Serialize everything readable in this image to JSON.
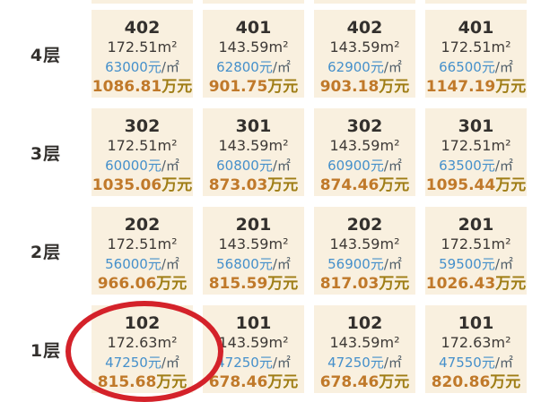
{
  "labels": {
    "per_suffix": "/㎡",
    "total_suffix": "万元"
  },
  "colors": {
    "cell_background": "#f9f0df",
    "text_dark": "#33302d",
    "price_blue": "#4590cb",
    "total_gold": "#c0792a",
    "total_suffix_gold": "#9f7d15",
    "highlight_red": "#d4222a"
  },
  "highlight": {
    "shape": "red-ellipse",
    "floor": "1层",
    "unit": "102"
  },
  "chart_data": {
    "type": "table",
    "row_headers": [
      "4层",
      "3层",
      "2层",
      "1层"
    ],
    "columns_per_row": 4,
    "floors": [
      {
        "label": "4层",
        "units": [
          {
            "no": "402",
            "area": "172.51m²",
            "price": "63000元",
            "total": "1086.81"
          },
          {
            "no": "401",
            "area": "143.59m²",
            "price": "62800元",
            "total": "901.75"
          },
          {
            "no": "402",
            "area": "143.59m²",
            "price": "62900元",
            "total": "903.18"
          },
          {
            "no": "401",
            "area": "172.51m²",
            "price": "66500元",
            "total": "1147.19"
          }
        ]
      },
      {
        "label": "3层",
        "units": [
          {
            "no": "302",
            "area": "172.51m²",
            "price": "60000元",
            "total": "1035.06"
          },
          {
            "no": "301",
            "area": "143.59m²",
            "price": "60800元",
            "total": "873.03"
          },
          {
            "no": "302",
            "area": "143.59m²",
            "price": "60900元",
            "total": "874.46"
          },
          {
            "no": "301",
            "area": "172.51m²",
            "price": "63500元",
            "total": "1095.44"
          }
        ]
      },
      {
        "label": "2层",
        "units": [
          {
            "no": "202",
            "area": "172.51m²",
            "price": "56000元",
            "total": "966.06"
          },
          {
            "no": "201",
            "area": "143.59m²",
            "price": "56800元",
            "total": "815.59"
          },
          {
            "no": "202",
            "area": "143.59m²",
            "price": "56900元",
            "total": "817.03"
          },
          {
            "no": "201",
            "area": "172.51m²",
            "price": "59500元",
            "total": "1026.43"
          }
        ]
      },
      {
        "label": "1层",
        "units": [
          {
            "no": "102",
            "area": "172.63m²",
            "price": "47250元",
            "total": "815.68"
          },
          {
            "no": "101",
            "area": "143.59m²",
            "price": "47250元",
            "total": "678.46"
          },
          {
            "no": "102",
            "area": "143.59m²",
            "price": "47250元",
            "total": "678.46"
          },
          {
            "no": "101",
            "area": "172.63m²",
            "price": "47550元",
            "total": "820.86"
          }
        ]
      }
    ]
  }
}
